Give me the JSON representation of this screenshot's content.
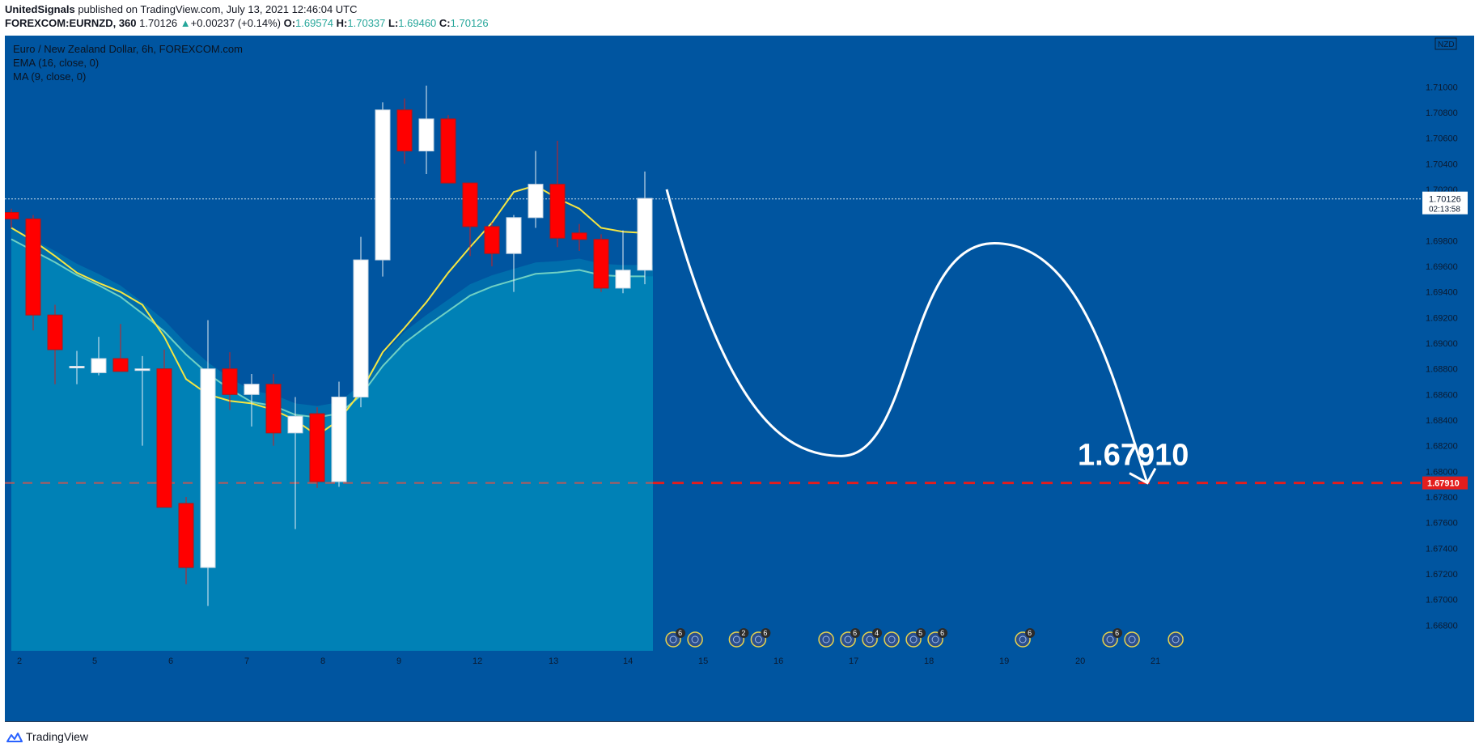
{
  "header": {
    "author": "UnitedSignals",
    "published_text": "published on TradingView.com, July 13, 2021 12:46:04 UTC",
    "symbol": "FOREXCOM:EURNZD, 360",
    "last": "1.70126",
    "change": "+0.00237 (+0.14%)",
    "o_label": "O:",
    "o": "1.69574",
    "h_label": "H:",
    "h": "1.70337",
    "l_label": "L:",
    "l": "1.69460",
    "c_label": "C:",
    "c": "1.70126"
  },
  "legend": {
    "title": "Euro / New Zealand Dollar, 6h, FOREXCOM.com",
    "ema": "EMA (16, close, 0)",
    "ma": "MA (9, close, 0)"
  },
  "chart_data": {
    "type": "candlestick",
    "currency": "NZD",
    "ylim": [
      1.666,
      1.714
    ],
    "y_ticks": [
      "1.71000",
      "1.70800",
      "1.70600",
      "1.70400",
      "1.70200",
      "1.69800",
      "1.69600",
      "1.69400",
      "1.69200",
      "1.69000",
      "1.68800",
      "1.68600",
      "1.68400",
      "1.68200",
      "1.68000",
      "1.67800",
      "1.67600",
      "1.67400",
      "1.67200",
      "1.67000",
      "1.66800"
    ],
    "x_ticks": [
      "2",
      "5",
      "6",
      "7",
      "8",
      "9",
      "12",
      "13",
      "14",
      "15",
      "16",
      "17",
      "18",
      "19",
      "20",
      "21"
    ],
    "last_price_label": "1.70126",
    "countdown_label": "02:13:58",
    "target_price": 1.6791,
    "target_label": "1.67910",
    "target_axis_label": "1.67910",
    "candles": [
      {
        "o": 1.7002,
        "h": 1.7005,
        "l": 1.699,
        "c": 1.6997
      },
      {
        "o": 1.6997,
        "h": 1.7,
        "l": 1.691,
        "c": 1.6922
      },
      {
        "o": 1.6922,
        "h": 1.693,
        "l": 1.6868,
        "c": 1.6895
      },
      {
        "o": 1.6882,
        "h": 1.6894,
        "l": 1.6868,
        "c": 1.6882
      },
      {
        "o": 1.6877,
        "h": 1.6905,
        "l": 1.6875,
        "c": 1.6888
      },
      {
        "o": 1.6888,
        "h": 1.6915,
        "l": 1.6878,
        "c": 1.6878
      },
      {
        "o": 1.688,
        "h": 1.689,
        "l": 1.682,
        "c": 1.688
      },
      {
        "o": 1.688,
        "h": 1.6895,
        "l": 1.6772,
        "c": 1.6772
      },
      {
        "o": 1.6775,
        "h": 1.678,
        "l": 1.6712,
        "c": 1.6725
      },
      {
        "o": 1.6725,
        "h": 1.6918,
        "l": 1.6695,
        "c": 1.688
      },
      {
        "o": 1.688,
        "h": 1.6893,
        "l": 1.6848,
        "c": 1.686
      },
      {
        "o": 1.686,
        "h": 1.6876,
        "l": 1.6835,
        "c": 1.6868
      },
      {
        "o": 1.6868,
        "h": 1.6876,
        "l": 1.682,
        "c": 1.683
      },
      {
        "o": 1.683,
        "h": 1.6858,
        "l": 1.6755,
        "c": 1.6843
      },
      {
        "o": 1.6845,
        "h": 1.685,
        "l": 1.6787,
        "c": 1.6792
      },
      {
        "o": 1.6792,
        "h": 1.687,
        "l": 1.6788,
        "c": 1.6858
      },
      {
        "o": 1.6858,
        "h": 1.6983,
        "l": 1.685,
        "c": 1.6965
      },
      {
        "o": 1.6965,
        "h": 1.7088,
        "l": 1.6952,
        "c": 1.7082
      },
      {
        "o": 1.7082,
        "h": 1.7091,
        "l": 1.704,
        "c": 1.705
      },
      {
        "o": 1.705,
        "h": 1.7101,
        "l": 1.7032,
        "c": 1.7075
      },
      {
        "o": 1.7075,
        "h": 1.7078,
        "l": 1.7025,
        "c": 1.7025
      },
      {
        "o": 1.7025,
        "h": 1.7025,
        "l": 1.6968,
        "c": 1.6991
      },
      {
        "o": 1.6991,
        "h": 1.6994,
        "l": 1.696,
        "c": 1.697
      },
      {
        "o": 1.697,
        "h": 1.7,
        "l": 1.694,
        "c": 1.6998
      },
      {
        "o": 1.6998,
        "h": 1.705,
        "l": 1.699,
        "c": 1.7024
      },
      {
        "o": 1.7024,
        "h": 1.7058,
        "l": 1.6975,
        "c": 1.6982
      },
      {
        "o": 1.6986,
        "h": 1.6993,
        "l": 1.6972,
        "c": 1.6981
      },
      {
        "o": 1.6981,
        "h": 1.6985,
        "l": 1.694,
        "c": 1.6943
      },
      {
        "o": 1.6943,
        "h": 1.6988,
        "l": 1.6939,
        "c": 1.6957
      },
      {
        "o": 1.6957,
        "h": 1.7034,
        "l": 1.6946,
        "c": 1.7013
      }
    ],
    "ema": [
      1.699,
      1.6981,
      1.6972,
      1.6962,
      1.6954,
      1.6945,
      1.6932,
      1.6918,
      1.69,
      1.6885,
      1.6873,
      1.6863,
      1.686,
      1.6853,
      1.6851,
      1.6854,
      1.6868,
      1.6891,
      1.6909,
      1.6922,
      1.6934,
      1.6946,
      1.6953,
      1.6958,
      1.6963,
      1.6964,
      1.6966,
      1.6962,
      1.6961,
      1.6961
    ],
    "ma": [
      1.699,
      1.698,
      1.6968,
      1.6955,
      1.6947,
      1.694,
      1.693,
      1.6905,
      1.6872,
      1.686,
      1.6855,
      1.6853,
      1.6848,
      1.684,
      1.6828,
      1.684,
      1.6862,
      1.6893,
      1.6912,
      1.6932,
      1.6955,
      1.6975,
      1.6994,
      1.7018,
      1.7023,
      1.7013,
      1.7005,
      1.699,
      1.6987,
      1.6986
    ],
    "forecast_path": [
      [
        30,
        1.702
      ],
      [
        38,
        1.6812
      ],
      [
        45,
        1.6978
      ],
      [
        52,
        1.6791
      ]
    ],
    "event_markers": [
      {
        "x": 30.3,
        "badge": "6"
      },
      {
        "x": 31.3,
        "badge": ""
      },
      {
        "x": 33.2,
        "badge": "2"
      },
      {
        "x": 34.2,
        "badge": "6"
      },
      {
        "x": 37.3,
        "badge": ""
      },
      {
        "x": 38.3,
        "badge": "6"
      },
      {
        "x": 39.3,
        "badge": "4"
      },
      {
        "x": 40.3,
        "badge": ""
      },
      {
        "x": 41.3,
        "badge": "5"
      },
      {
        "x": 42.3,
        "badge": "6"
      },
      {
        "x": 46.3,
        "badge": "6"
      },
      {
        "x": 50.3,
        "badge": "6"
      },
      {
        "x": 51.3,
        "badge": ""
      },
      {
        "x": 53.3,
        "badge": ""
      }
    ]
  },
  "footer": {
    "brand": "TradingView"
  },
  "colors": {
    "background": "#0055a0",
    "area": "#0083b7",
    "bull": "#ffffff",
    "bear": "#ff0000",
    "ema": "#6fd0c4",
    "ma": "#f5e642",
    "target": "#e31d1d"
  }
}
